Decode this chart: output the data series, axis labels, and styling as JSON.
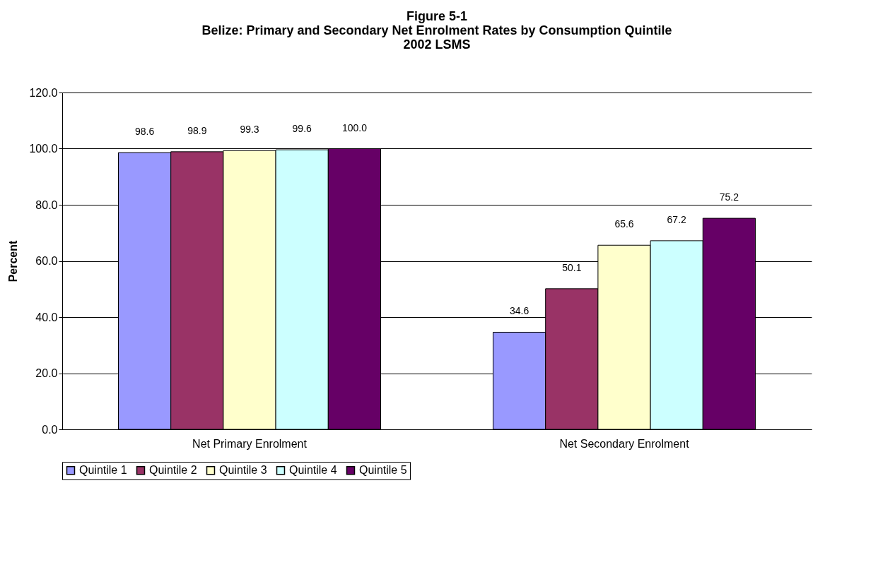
{
  "chart_data": {
    "type": "bar",
    "title": "Figure 5-1\nBelize: Primary and Secondary Net Enrolment Rates by Consumption Quintile\n2002 LSMS",
    "ylabel": "Percent",
    "categories": [
      "Net Primary Enrolment",
      "Net Secondary Enrolment"
    ],
    "series": [
      {
        "name": "Quintile 1",
        "color": "#9999ff",
        "values": [
          98.6,
          34.6
        ],
        "value_labels": [
          "98.6",
          "34.6"
        ]
      },
      {
        "name": "Quintile 2",
        "color": "#993366",
        "values": [
          98.9,
          50.1
        ],
        "value_labels": [
          "98.9",
          "50.1"
        ]
      },
      {
        "name": "Quintile 3",
        "color": "#ffffcc",
        "values": [
          99.3,
          65.6
        ],
        "value_labels": [
          "99.3",
          "65.6"
        ]
      },
      {
        "name": "Quintile 4",
        "color": "#ccffff",
        "values": [
          99.6,
          67.2
        ],
        "value_labels": [
          "99.6",
          "67.2"
        ]
      },
      {
        "name": "Quintile 5",
        "color": "#660066",
        "values": [
          100,
          75.2
        ],
        "value_labels": [
          "100.0",
          "75.2"
        ]
      }
    ],
    "ylim": [
      0,
      120
    ],
    "yticks": [
      {
        "value": 0,
        "label": "0.0"
      },
      {
        "value": 20,
        "label": "20.0"
      },
      {
        "value": 40,
        "label": "40.0"
      },
      {
        "value": 60,
        "label": "60.0"
      },
      {
        "value": 80,
        "label": "80.0"
      },
      {
        "value": 100,
        "label": "100.0"
      },
      {
        "value": 120,
        "label": "120.0"
      }
    ],
    "grid": "y",
    "legend": "bottom"
  }
}
